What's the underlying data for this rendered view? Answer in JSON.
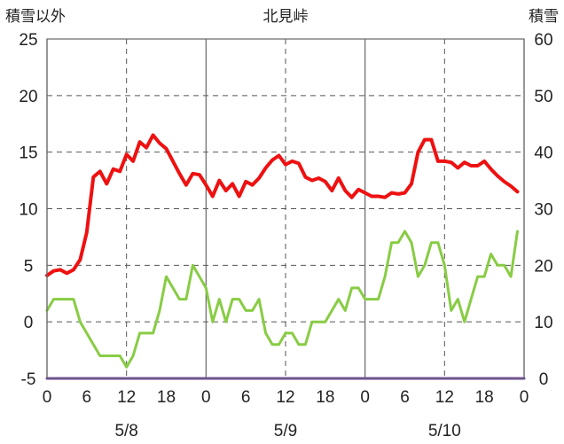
{
  "chart_data": {
    "type": "line",
    "title": "北見峠",
    "ylabel_left": "積雪以外",
    "ylabel_right": "積雪",
    "ylim_left": [
      -5,
      25
    ],
    "ylim_right": [
      0,
      60
    ],
    "yticks_left": [
      "-5",
      "0",
      "5",
      "10",
      "15",
      "20",
      "25"
    ],
    "yticks_right": [
      "0",
      "10",
      "20",
      "30",
      "40",
      "50",
      "60"
    ],
    "x_range": [
      0,
      72
    ],
    "xticks": [
      "0",
      "6",
      "12",
      "18",
      "0",
      "6",
      "12",
      "18",
      "0",
      "6",
      "12",
      "18",
      "0"
    ],
    "date_labels": [
      "5/8",
      "5/9",
      "5/10"
    ],
    "grid": {
      "solid_x": [
        0,
        24,
        48,
        72
      ],
      "dashed_x": [
        12,
        36,
        60
      ],
      "dashed_y": [
        0,
        5,
        10,
        15,
        20
      ]
    },
    "series": [
      {
        "color": "#ee1111",
        "axis": "left",
        "x": [
          0,
          1,
          2,
          3,
          4,
          5,
          6,
          7,
          8,
          9,
          10,
          11,
          12,
          13,
          14,
          15,
          16,
          17,
          18,
          19,
          20,
          21,
          22,
          23,
          24,
          25,
          26,
          27,
          28,
          29,
          30,
          31,
          32,
          33,
          34,
          35,
          36,
          37,
          38,
          39,
          40,
          41,
          42,
          43,
          44,
          45,
          46,
          47,
          48,
          49,
          50,
          51,
          52,
          53,
          54,
          55,
          56,
          57,
          58,
          59,
          60,
          61,
          62,
          63,
          64,
          65,
          66,
          67,
          68,
          69,
          70,
          71
        ],
        "values": [
          4.1,
          4.5,
          4.6,
          4.3,
          4.6,
          5.5,
          7.9,
          12.8,
          13.3,
          12.2,
          13.5,
          13.3,
          14.8,
          14.2,
          15.9,
          15.4,
          16.5,
          15.8,
          15.3,
          14.2,
          13.1,
          12.1,
          13.1,
          13.0,
          12.1,
          11.1,
          12.5,
          11.6,
          12.2,
          11.1,
          12.4,
          12.1,
          12.7,
          13.6,
          14.3,
          14.7,
          13.9,
          14.2,
          14.0,
          12.8,
          12.5,
          12.7,
          12.4,
          11.6,
          12.7,
          11.6,
          11.0,
          11.7,
          11.4,
          11.1,
          11.1,
          11.0,
          11.4,
          11.3,
          11.4,
          12.2,
          15.0,
          16.1,
          16.1,
          14.2,
          14.2,
          14.1,
          13.6,
          14.1,
          13.8,
          13.8,
          14.2,
          13.5,
          12.9,
          12.4,
          12.0,
          11.5
        ]
      },
      {
        "color": "#88cc44",
        "axis": "left",
        "x": [
          0,
          1,
          2,
          3,
          4,
          5,
          6,
          7,
          8,
          9,
          10,
          11,
          12,
          13,
          14,
          15,
          16,
          17,
          18,
          19,
          20,
          21,
          22,
          23,
          24,
          25,
          26,
          27,
          28,
          29,
          30,
          31,
          32,
          33,
          34,
          35,
          36,
          37,
          38,
          39,
          40,
          41,
          42,
          43,
          44,
          45,
          46,
          47,
          48,
          49,
          50,
          51,
          52,
          53,
          54,
          55,
          56,
          57,
          58,
          59,
          60,
          61,
          62,
          63,
          64,
          65,
          66,
          67,
          68,
          69,
          70,
          71
        ],
        "values": [
          1,
          2,
          2,
          2,
          2,
          0,
          -1,
          -2,
          -3,
          -3,
          -3,
          -3,
          -4,
          -3,
          -1,
          -1,
          -1,
          1,
          4,
          3,
          2,
          2,
          5,
          4,
          3,
          0,
          2,
          0,
          2,
          2,
          1,
          1,
          2,
          -1,
          -2,
          -2,
          -1,
          -1,
          -2,
          -2,
          0,
          0,
          0,
          1,
          2,
          1,
          3,
          3,
          2,
          2,
          2,
          4,
          7,
          7,
          8,
          7,
          4,
          5,
          7,
          7,
          5,
          1,
          2,
          0,
          2,
          4,
          4,
          6,
          5,
          5,
          4,
          8
        ]
      },
      {
        "color": "#7744aa",
        "axis": "right",
        "x": [
          0,
          72
        ],
        "values": [
          0,
          0
        ]
      }
    ]
  }
}
